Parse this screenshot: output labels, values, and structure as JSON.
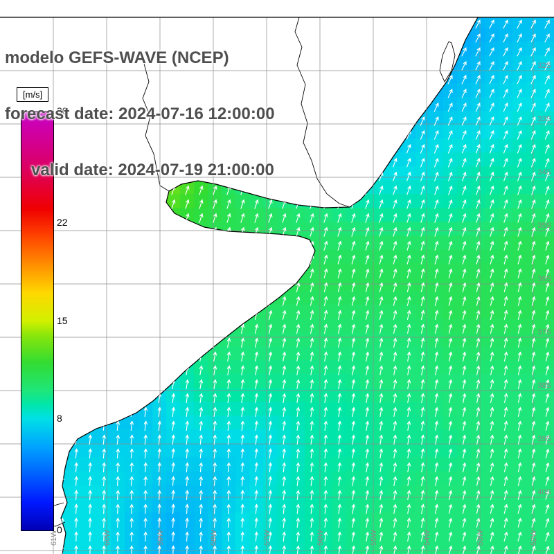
{
  "header": {
    "line1": "modelo GEFS-WAVE (NCEP)",
    "line2": "forecast date: 2024-07-16 12:00:00",
    "line3": "valid date: 2024-07-19 21:00:00",
    "text_color": "#4f4f4f"
  },
  "colorbar": {
    "unit_label": "[m/s]",
    "min": 0,
    "max": 30,
    "ticks": [
      30,
      22,
      15,
      8,
      0
    ],
    "stops": [
      [
        0,
        "#0000b4"
      ],
      [
        2,
        "#0018ff"
      ],
      [
        4,
        "#0060ff"
      ],
      [
        6,
        "#00a4ff"
      ],
      [
        8,
        "#00e0e6"
      ],
      [
        9,
        "#00e6aa"
      ],
      [
        10,
        "#1ee67a"
      ],
      [
        12,
        "#32dc32"
      ],
      [
        14,
        "#8ce60a"
      ],
      [
        15,
        "#d2f000"
      ],
      [
        17,
        "#ffd800"
      ],
      [
        19,
        "#ff9000"
      ],
      [
        21,
        "#ff4600"
      ],
      [
        23,
        "#f00000"
      ],
      [
        26,
        "#dc0064"
      ],
      [
        30,
        "#c800c8"
      ]
    ]
  },
  "map": {
    "lat_labels": [
      "32S",
      "33S",
      "34S",
      "35S",
      "36S",
      "37S",
      "38S",
      "39S",
      "40S"
    ],
    "lon_labels": [
      "61W",
      "60W",
      "59W",
      "58W",
      "57W",
      "56W",
      "55W",
      "54W",
      "53W",
      "52W"
    ],
    "grid_color": "#8c8c8c",
    "label_color": "#8a8a8a",
    "arrow_color": "#ffffff",
    "land_color": "#ffffff",
    "coastline_color": "#000000"
  },
  "chart_data": {
    "type": "heatmap",
    "title": "modelo GEFS-WAVE (NCEP)",
    "variable": "wind speed with wind direction arrows",
    "units": "m/s",
    "colorbar_range": [
      0,
      30
    ],
    "colorbar_ticks": [
      30,
      22,
      15,
      8,
      0
    ],
    "lat_ticks": [
      "32S",
      "33S",
      "34S",
      "35S",
      "36S",
      "37S",
      "38S",
      "39S",
      "40S"
    ],
    "lon_ticks": [
      "61W",
      "60W",
      "59W",
      "58W",
      "57W",
      "56W",
      "55W",
      "54W",
      "53W",
      "52W"
    ],
    "grid_spacing_deg": 1,
    "arrow_direction_note": "winds blowing toward N-NNE over the whole ocean area",
    "grid_px_spacing": 50,
    "wind_speed_grid_mps": [
      [
        7,
        7,
        7,
        7,
        7,
        7,
        7,
        7,
        7,
        7,
        6.5,
        6,
        6,
        6.5,
        7,
        7,
        7
      ],
      [
        7,
        7,
        7,
        7,
        7,
        7,
        7,
        7,
        7,
        6.5,
        6,
        5.5,
        5.5,
        6,
        6.5,
        7,
        7
      ],
      [
        7,
        7,
        7,
        7,
        7,
        7,
        7,
        7,
        6.5,
        6,
        5.5,
        5.5,
        6,
        6.5,
        7,
        7.5,
        8
      ],
      [
        8,
        8,
        8,
        8,
        8,
        8,
        7.5,
        7,
        6.5,
        6,
        6,
        6,
        6.5,
        7,
        7.5,
        8,
        8
      ],
      [
        8,
        8,
        8,
        9,
        10,
        10,
        9,
        8,
        7,
        6.5,
        6.5,
        7,
        7.5,
        8,
        8,
        8.5,
        9
      ],
      [
        8,
        8,
        9,
        12,
        14,
        13.5,
        12,
        9.5,
        8,
        7.5,
        7.5,
        8,
        8,
        8.5,
        9,
        9,
        9
      ],
      [
        8,
        8,
        8,
        12,
        13.5,
        12.5,
        11.5,
        11,
        10.5,
        10,
        9.5,
        9,
        9,
        9,
        9.5,
        10,
        10
      ],
      [
        7,
        7,
        7,
        8,
        10,
        11,
        11,
        11,
        10.5,
        10.5,
        10.5,
        10.5,
        10.5,
        10.5,
        10.5,
        11,
        11
      ],
      [
        7,
        7,
        7,
        7,
        9,
        10.5,
        11,
        11,
        11,
        11,
        11,
        11,
        11,
        11,
        11,
        11,
        11
      ],
      [
        6,
        6,
        6,
        6.5,
        8,
        10,
        10.5,
        10.5,
        10.5,
        10.5,
        10.5,
        10.5,
        10.5,
        11,
        11,
        11,
        11
      ],
      [
        6,
        6,
        6,
        6,
        7.5,
        9,
        10,
        10,
        10,
        10,
        10,
        10,
        10,
        10.5,
        10.5,
        10.5,
        10.5
      ],
      [
        6,
        6,
        6,
        6,
        7,
        8.5,
        9.5,
        9.5,
        9.5,
        9.5,
        9.5,
        10,
        10,
        10,
        10,
        10,
        10
      ],
      [
        6,
        6.5,
        7,
        7,
        7,
        8,
        8.5,
        8.5,
        8.5,
        9,
        9,
        9.5,
        9.5,
        10,
        10,
        10,
        10
      ],
      [
        7,
        7,
        7.5,
        7.5,
        7.5,
        7.5,
        7.5,
        7.5,
        8,
        9,
        9,
        9.5,
        9.5,
        9.5,
        10,
        10,
        10
      ],
      [
        7,
        7.5,
        8,
        8,
        7.5,
        7,
        7,
        7.5,
        8.5,
        9,
        9.5,
        9.5,
        10,
        10,
        10,
        10,
        10
      ],
      [
        7.5,
        8,
        8,
        8,
        7,
        6.5,
        7,
        8,
        8.5,
        9,
        9.5,
        10,
        10,
        10,
        10,
        10,
        10
      ],
      [
        7.5,
        8,
        8,
        8,
        7,
        6.5,
        7,
        8,
        8.5,
        9,
        9.5,
        10,
        10,
        10,
        10,
        10,
        10
      ]
    ]
  }
}
